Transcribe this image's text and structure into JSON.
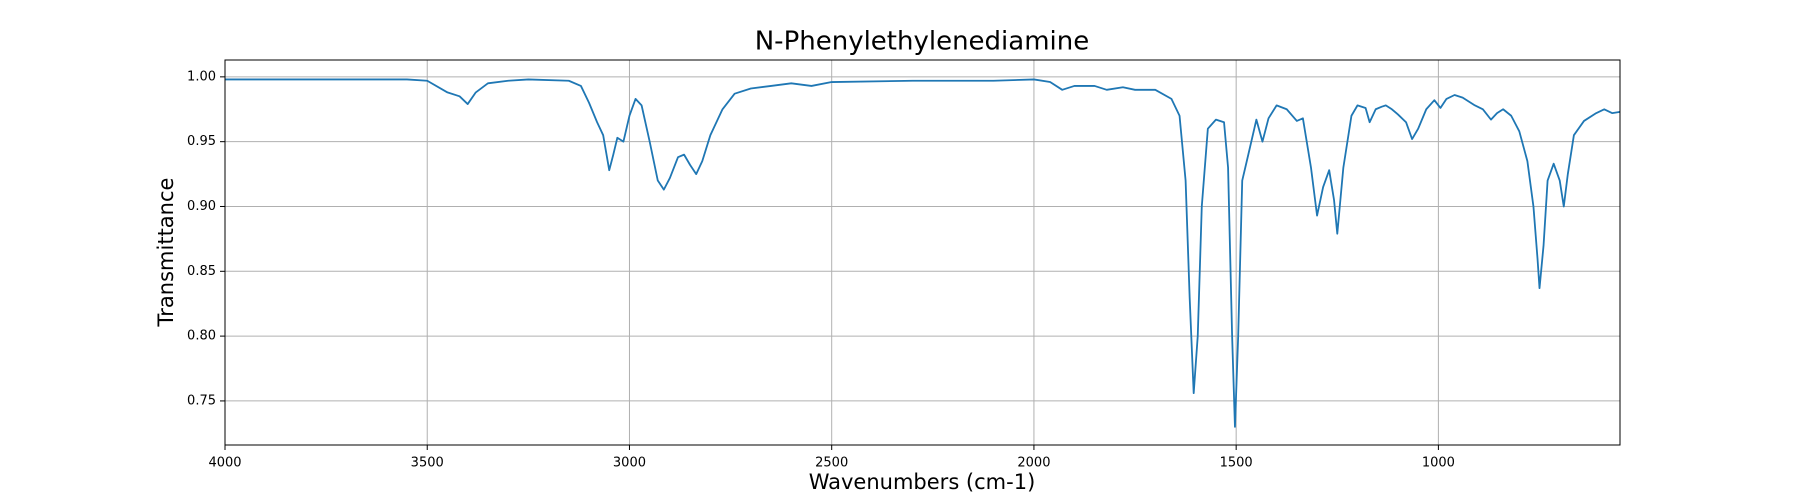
{
  "chart_data": {
    "type": "line",
    "title": "N-Phenylethylenediamine",
    "xlabel": "Wavenumbers (cm-1)",
    "ylabel": "Transmittance",
    "xlim": [
      4000,
      551
    ],
    "ylim": [
      0.716,
      1.013
    ],
    "xticks": [
      4000,
      3500,
      3000,
      2500,
      2000,
      1500,
      1000
    ],
    "yticks": [
      0.75,
      {
        "value": 0.8,
        "label": "0.80"
      },
      0.85,
      {
        "value": 0.9,
        "label": "0.90"
      },
      0.95,
      {
        "value": 1.0,
        "label": "1.00"
      }
    ],
    "grid": true,
    "series": [
      {
        "color": "#1f77b4",
        "x": [
          4000,
          3800,
          3600,
          3550,
          3500,
          3450,
          3420,
          3400,
          3380,
          3350,
          3300,
          3250,
          3150,
          3120,
          3100,
          3080,
          3065,
          3050,
          3040,
          3030,
          3015,
          3000,
          2985,
          2970,
          2950,
          2930,
          2915,
          2900,
          2880,
          2865,
          2850,
          2835,
          2820,
          2800,
          2770,
          2740,
          2700,
          2650,
          2600,
          2550,
          2500,
          2300,
          2100,
          2000,
          1960,
          1930,
          1900,
          1850,
          1820,
          1780,
          1750,
          1700,
          1660,
          1640,
          1625,
          1615,
          1605,
          1595,
          1585,
          1570,
          1550,
          1530,
          1520,
          1510,
          1503,
          1495,
          1485,
          1470,
          1450,
          1435,
          1420,
          1400,
          1375,
          1350,
          1335,
          1315,
          1300,
          1285,
          1270,
          1258,
          1250,
          1235,
          1215,
          1200,
          1180,
          1170,
          1155,
          1140,
          1130,
          1115,
          1100,
          1080,
          1065,
          1050,
          1030,
          1010,
          995,
          980,
          960,
          940,
          910,
          890,
          870,
          855,
          840,
          820,
          800,
          780,
          765,
          755,
          750,
          740,
          730,
          715,
          700,
          690,
          680,
          665,
          640,
          610,
          590,
          570,
          551
        ],
        "values": [
          0.998,
          0.998,
          0.998,
          0.998,
          0.997,
          0.988,
          0.985,
          0.979,
          0.988,
          0.995,
          0.997,
          0.998,
          0.997,
          0.993,
          0.98,
          0.965,
          0.955,
          0.928,
          0.94,
          0.953,
          0.95,
          0.97,
          0.983,
          0.978,
          0.95,
          0.92,
          0.913,
          0.922,
          0.938,
          0.94,
          0.932,
          0.925,
          0.935,
          0.955,
          0.975,
          0.987,
          0.991,
          0.993,
          0.995,
          0.993,
          0.996,
          0.997,
          0.997,
          0.998,
          0.996,
          0.99,
          0.993,
          0.993,
          0.99,
          0.992,
          0.99,
          0.99,
          0.983,
          0.97,
          0.92,
          0.83,
          0.756,
          0.8,
          0.9,
          0.96,
          0.967,
          0.965,
          0.93,
          0.8,
          0.73,
          0.8,
          0.92,
          0.94,
          0.967,
          0.95,
          0.968,
          0.978,
          0.975,
          0.966,
          0.968,
          0.93,
          0.893,
          0.915,
          0.928,
          0.905,
          0.879,
          0.93,
          0.97,
          0.978,
          0.976,
          0.965,
          0.975,
          0.977,
          0.978,
          0.975,
          0.971,
          0.965,
          0.952,
          0.96,
          0.975,
          0.982,
          0.976,
          0.983,
          0.986,
          0.984,
          0.978,
          0.975,
          0.967,
          0.972,
          0.975,
          0.97,
          0.958,
          0.935,
          0.9,
          0.86,
          0.837,
          0.87,
          0.92,
          0.933,
          0.92,
          0.9,
          0.925,
          0.955,
          0.966,
          0.972,
          0.975,
          0.972,
          0.973
        ]
      }
    ]
  }
}
